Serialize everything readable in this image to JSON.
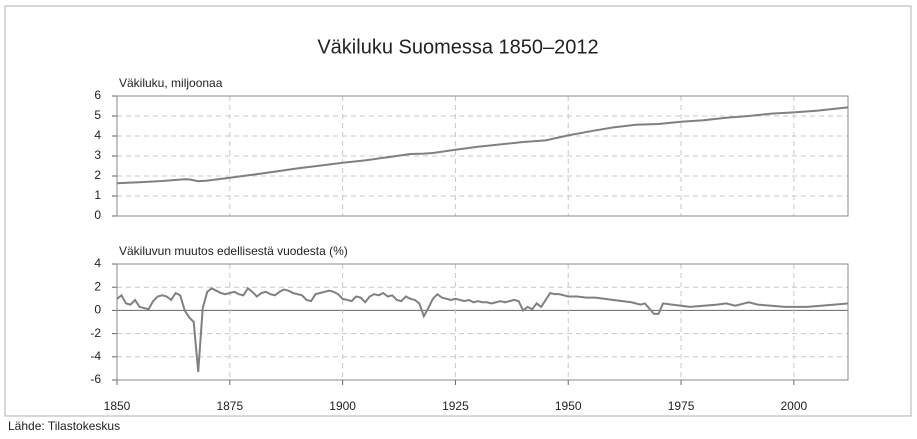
{
  "title": "Väkiluku Suomessa 1850–2012",
  "source": "Lähde: Tilastokeskus",
  "chart_data": [
    {
      "type": "line",
      "ylabel": "Väkiluku, miljoonaa",
      "x": [
        1850,
        1855,
        1860,
        1865,
        1866,
        1868,
        1870,
        1875,
        1880,
        1885,
        1890,
        1895,
        1900,
        1905,
        1910,
        1915,
        1918,
        1920,
        1925,
        1930,
        1935,
        1940,
        1945,
        1950,
        1955,
        1960,
        1965,
        1970,
        1975,
        1980,
        1985,
        1990,
        1995,
        2000,
        2005,
        2012
      ],
      "series": [
        {
          "name": "Väkiluku",
          "color": "#808080",
          "values": [
            1.64,
            1.69,
            1.75,
            1.84,
            1.83,
            1.74,
            1.77,
            1.91,
            2.06,
            2.22,
            2.38,
            2.52,
            2.66,
            2.78,
            2.94,
            3.1,
            3.12,
            3.15,
            3.31,
            3.46,
            3.58,
            3.7,
            3.78,
            4.03,
            4.24,
            4.43,
            4.56,
            4.6,
            4.71,
            4.79,
            4.91,
            5.0,
            5.12,
            5.18,
            5.26,
            5.43
          ]
        }
      ],
      "xlim": [
        1850,
        2012
      ],
      "ylim": [
        0,
        6
      ],
      "yticks": [
        0,
        1,
        2,
        3,
        4,
        5,
        6
      ],
      "grid": true
    },
    {
      "type": "line",
      "ylabel": "Väkiluvun muutos edellisestä vuodesta (%)",
      "x": [
        1850,
        1851,
        1852,
        1853,
        1854,
        1855,
        1856,
        1857,
        1858,
        1859,
        1860,
        1861,
        1862,
        1863,
        1864,
        1865,
        1866,
        1867,
        1868,
        1869,
        1870,
        1871,
        1872,
        1873,
        1874,
        1875,
        1876,
        1877,
        1878,
        1879,
        1880,
        1881,
        1882,
        1883,
        1884,
        1885,
        1886,
        1887,
        1888,
        1889,
        1890,
        1891,
        1892,
        1893,
        1894,
        1895,
        1896,
        1897,
        1898,
        1899,
        1900,
        1901,
        1902,
        1903,
        1904,
        1905,
        1906,
        1907,
        1908,
        1909,
        1910,
        1911,
        1912,
        1913,
        1914,
        1915,
        1916,
        1917,
        1918,
        1919,
        1920,
        1921,
        1922,
        1923,
        1924,
        1925,
        1926,
        1927,
        1928,
        1929,
        1930,
        1931,
        1932,
        1933,
        1934,
        1935,
        1936,
        1937,
        1938,
        1939,
        1940,
        1941,
        1942,
        1943,
        1944,
        1945,
        1946,
        1947,
        1948,
        1949,
        1950,
        1952,
        1954,
        1956,
        1958,
        1960,
        1962,
        1964,
        1966,
        1967,
        1969,
        1970,
        1971,
        1973,
        1975,
        1977,
        1980,
        1983,
        1985,
        1987,
        1990,
        1992,
        1995,
        1998,
        2000,
        2003,
        2006,
        2009,
        2012
      ],
      "series": [
        {
          "name": "Muutos",
          "color": "#808080",
          "values": [
            1.0,
            1.3,
            0.6,
            0.5,
            0.9,
            0.3,
            0.2,
            0.1,
            0.8,
            1.2,
            1.3,
            1.2,
            0.9,
            1.5,
            1.3,
            0.0,
            -0.6,
            -1.0,
            -5.3,
            0.2,
            1.6,
            1.9,
            1.7,
            1.5,
            1.4,
            1.5,
            1.6,
            1.4,
            1.3,
            1.9,
            1.6,
            1.2,
            1.5,
            1.6,
            1.4,
            1.3,
            1.6,
            1.8,
            1.7,
            1.5,
            1.4,
            1.3,
            0.9,
            0.8,
            1.4,
            1.5,
            1.6,
            1.7,
            1.6,
            1.4,
            1.0,
            0.9,
            0.8,
            1.2,
            1.1,
            0.7,
            1.2,
            1.4,
            1.3,
            1.5,
            1.2,
            1.3,
            0.9,
            0.8,
            1.2,
            1.0,
            0.9,
            0.6,
            -0.5,
            0.2,
            1.0,
            1.4,
            1.1,
            1.0,
            0.9,
            1.0,
            0.9,
            0.8,
            0.9,
            0.7,
            0.8,
            0.7,
            0.7,
            0.6,
            0.7,
            0.8,
            0.7,
            0.8,
            0.9,
            0.8,
            0.0,
            0.3,
            0.1,
            0.6,
            0.3,
            0.9,
            1.5,
            1.4,
            1.4,
            1.3,
            1.2,
            1.2,
            1.1,
            1.1,
            1.0,
            0.9,
            0.8,
            0.7,
            0.5,
            0.6,
            -0.3,
            -0.3,
            0.6,
            0.5,
            0.4,
            0.3,
            0.4,
            0.5,
            0.6,
            0.4,
            0.7,
            0.5,
            0.4,
            0.3,
            0.3,
            0.3,
            0.4,
            0.5,
            0.6
          ]
        }
      ],
      "xlim": [
        1850,
        2012
      ],
      "ylim": [
        -6,
        4
      ],
      "yticks": [
        -6,
        -4,
        -2,
        0,
        2,
        4
      ],
      "xticks": [
        1850,
        1875,
        1900,
        1925,
        1950,
        1975,
        2000
      ],
      "grid": true
    }
  ]
}
